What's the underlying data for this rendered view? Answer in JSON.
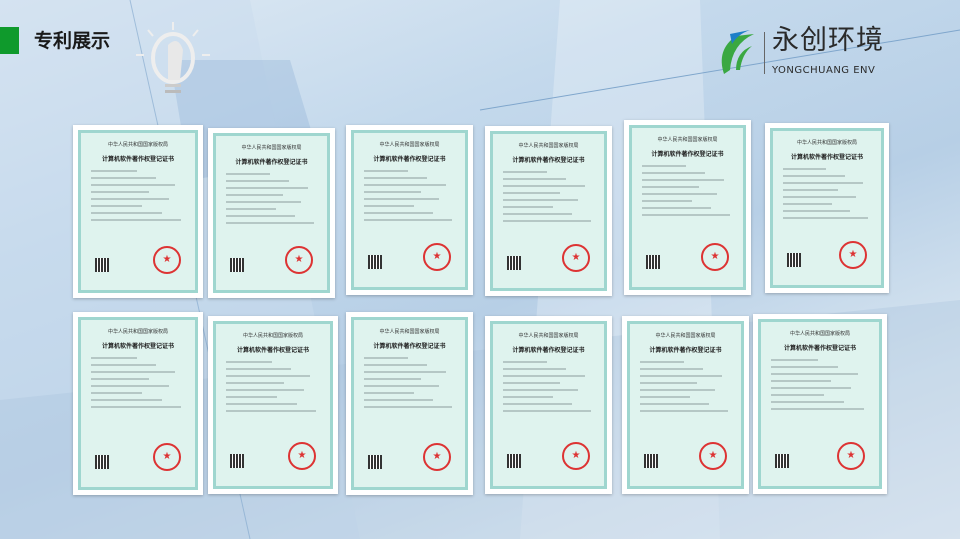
{
  "header": {
    "title": "专利展示"
  },
  "logo": {
    "name_cn": "永创环境",
    "name_en": "YONGCHUANG ENV",
    "colors": {
      "green": "#3aa842",
      "blue": "#1d7fc8"
    }
  },
  "accent": "#0f9a2c",
  "certificate": {
    "issuer": "中华人民共和国国家版权局",
    "title": "计算机软件著作权登记证书",
    "seal_icon": "★"
  },
  "certificates_count": 12
}
